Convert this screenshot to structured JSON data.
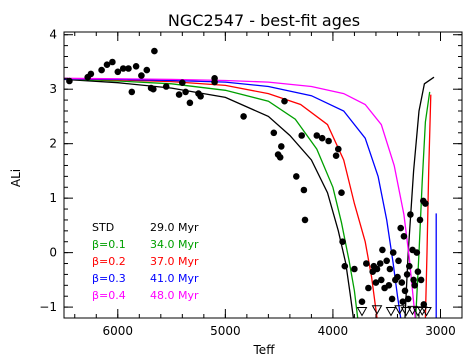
{
  "chart_data": {
    "type": "line",
    "title": "NGC2547 - best-fit ages",
    "xlabel": "Teff",
    "ylabel": "ALi",
    "xlim": [
      6500,
      2800
    ],
    "ylim": [
      -1.2,
      4.05
    ],
    "x_ticks": [
      6000,
      5000,
      4000,
      3000
    ],
    "x_tick_labels": [
      "6000",
      "5000",
      "4000",
      "3000"
    ],
    "y_ticks": [
      -1,
      0,
      1,
      2,
      3,
      4
    ],
    "y_tick_labels": [
      "−1",
      "0",
      "1",
      "2",
      "3",
      "4"
    ],
    "x_minor_step": 200,
    "y_minor_step": 0.2,
    "series": [
      {
        "color": "#000000",
        "points": [
          [
            6500,
            3.18
          ],
          [
            6000,
            3.12
          ],
          [
            5500,
            3.02
          ],
          [
            5000,
            2.85
          ],
          [
            4600,
            2.5
          ],
          [
            4400,
            2.15
          ],
          [
            4200,
            1.7
          ],
          [
            4050,
            1.1
          ],
          [
            3950,
            0.4
          ],
          [
            3880,
            -0.2
          ],
          [
            3840,
            -0.75
          ],
          [
            3810,
            -1.2
          ]
        ],
        "hook": [
          [
            3330,
            -1.2
          ],
          [
            3300,
            0.0
          ],
          [
            3250,
            1.5
          ],
          [
            3200,
            2.6
          ],
          [
            3150,
            3.1
          ],
          [
            3060,
            3.22
          ]
        ]
      },
      {
        "color": "#00a000",
        "points": [
          [
            6500,
            3.19
          ],
          [
            6000,
            3.15
          ],
          [
            5500,
            3.1
          ],
          [
            5000,
            2.98
          ],
          [
            4600,
            2.78
          ],
          [
            4350,
            2.45
          ],
          [
            4150,
            1.9
          ],
          [
            4000,
            1.2
          ],
          [
            3920,
            0.55
          ],
          [
            3850,
            -0.15
          ],
          [
            3800,
            -0.7
          ],
          [
            3770,
            -1.2
          ]
        ],
        "hook": [
          [
            3230,
            -1.2
          ],
          [
            3200,
            0.0
          ],
          [
            3170,
            1.3
          ],
          [
            3140,
            2.4
          ],
          [
            3100,
            2.95
          ]
        ]
      },
      {
        "color": "#ff0000",
        "points": [
          [
            6500,
            3.19
          ],
          [
            6000,
            3.17
          ],
          [
            5500,
            3.14
          ],
          [
            5000,
            3.07
          ],
          [
            4600,
            2.92
          ],
          [
            4300,
            2.72
          ],
          [
            4050,
            2.35
          ],
          [
            3900,
            1.7
          ],
          [
            3800,
            0.9
          ],
          [
            3700,
            0.2
          ],
          [
            3640,
            -0.45
          ],
          [
            3590,
            -1.2
          ]
        ],
        "hook": [
          [
            3140,
            -1.2
          ],
          [
            3125,
            0.0
          ],
          [
            3110,
            1.5
          ],
          [
            3090,
            2.9
          ]
        ]
      },
      {
        "color": "#0000ff",
        "points": [
          [
            6500,
            3.19
          ],
          [
            6000,
            3.18
          ],
          [
            5500,
            3.16
          ],
          [
            5000,
            3.13
          ],
          [
            4600,
            3.05
          ],
          [
            4200,
            2.88
          ],
          [
            3900,
            2.6
          ],
          [
            3700,
            2.1
          ],
          [
            3580,
            1.4
          ],
          [
            3500,
            0.6
          ],
          [
            3440,
            -0.2
          ],
          [
            3400,
            -0.8
          ],
          [
            3370,
            -1.2
          ]
        ],
        "hook": [
          [
            3040,
            -1.2
          ],
          [
            3040,
            0.72
          ]
        ]
      },
      {
        "color": "#ff00ff",
        "points": [
          [
            6500,
            3.2
          ],
          [
            6000,
            3.19
          ],
          [
            5500,
            3.18
          ],
          [
            5000,
            3.16
          ],
          [
            4600,
            3.13
          ],
          [
            4200,
            3.05
          ],
          [
            3900,
            2.92
          ],
          [
            3700,
            2.72
          ],
          [
            3550,
            2.35
          ],
          [
            3430,
            1.6
          ],
          [
            3340,
            0.7
          ],
          [
            3290,
            -0.1
          ],
          [
            3250,
            -0.9
          ],
          [
            3235,
            -1.2
          ]
        ],
        "hook": []
      }
    ],
    "stars": [
      [
        6450,
        3.15
      ],
      [
        6280,
        3.22
      ],
      [
        6250,
        3.28
      ],
      [
        6150,
        3.35
      ],
      [
        6100,
        3.45
      ],
      [
        6050,
        3.5
      ],
      [
        6000,
        3.32
      ],
      [
        5950,
        3.38
      ],
      [
        5900,
        3.38
      ],
      [
        5870,
        2.95
      ],
      [
        5830,
        3.42
      ],
      [
        5780,
        3.25
      ],
      [
        5730,
        3.35
      ],
      [
        5690,
        3.02
      ],
      [
        5670,
        3.0
      ],
      [
        5660,
        3.7
      ],
      [
        5550,
        3.05
      ],
      [
        5430,
        2.9
      ],
      [
        5400,
        3.12
      ],
      [
        5370,
        2.95
      ],
      [
        5330,
        2.75
      ],
      [
        5250,
        2.92
      ],
      [
        5230,
        2.87
      ],
      [
        5100,
        3.13
      ],
      [
        5100,
        3.2
      ],
      [
        4830,
        2.5
      ],
      [
        4550,
        2.2
      ],
      [
        4510,
        1.8
      ],
      [
        4490,
        1.75
      ],
      [
        4480,
        1.95
      ],
      [
        4450,
        2.78
      ],
      [
        4340,
        1.4
      ],
      [
        4290,
        2.15
      ],
      [
        4270,
        1.15
      ],
      [
        4260,
        0.6
      ],
      [
        4150,
        2.15
      ],
      [
        4100,
        2.1
      ],
      [
        4040,
        2.05
      ],
      [
        3970,
        1.78
      ],
      [
        3950,
        1.9
      ],
      [
        3920,
        1.1
      ],
      [
        3910,
        0.2
      ],
      [
        3890,
        -0.25
      ],
      [
        3800,
        -0.3
      ],
      [
        3730,
        -0.9
      ],
      [
        3690,
        -0.2
      ],
      [
        3670,
        -0.65
      ],
      [
        3630,
        -0.35
      ],
      [
        3620,
        -0.25
      ],
      [
        3600,
        -0.55
      ],
      [
        3590,
        -0.3
      ],
      [
        3560,
        -0.2
      ],
      [
        3550,
        -0.5
      ],
      [
        3540,
        0.05
      ],
      [
        3520,
        -0.65
      ],
      [
        3500,
        -0.15
      ],
      [
        3480,
        -0.6
      ],
      [
        3470,
        -0.3
      ],
      [
        3450,
        -0.85
      ],
      [
        3440,
        0.0
      ],
      [
        3420,
        -0.5
      ],
      [
        3400,
        -0.45
      ],
      [
        3390,
        -0.15
      ],
      [
        3370,
        0.45
      ],
      [
        3360,
        -0.55
      ],
      [
        3350,
        -0.9
      ],
      [
        3340,
        0.3
      ],
      [
        3330,
        -0.7
      ],
      [
        3310,
        -0.4
      ],
      [
        3300,
        -0.85
      ],
      [
        3290,
        -0.25
      ],
      [
        3280,
        0.7
      ],
      [
        3260,
        0.05
      ],
      [
        3250,
        -0.5
      ],
      [
        3240,
        -0.6
      ],
      [
        3220,
        0.0
      ],
      [
        3210,
        -0.35
      ],
      [
        3190,
        0.6
      ],
      [
        3180,
        -0.5
      ],
      [
        3160,
        0.95
      ],
      [
        3155,
        -0.95
      ],
      [
        3140,
        0.9
      ]
    ],
    "upper_limits": [
      [
        3730,
        -1.08
      ],
      [
        3590,
        -1.05
      ],
      [
        3460,
        -1.08
      ],
      [
        3380,
        -1.05
      ],
      [
        3320,
        -1.08
      ],
      [
        3260,
        -1.06
      ],
      [
        3210,
        -1.08
      ],
      [
        3170,
        -1.07
      ],
      [
        3130,
        -1.08
      ]
    ],
    "legend": [
      {
        "label": "STD",
        "age": "29.0 Myr",
        "color": "#000000"
      },
      {
        "label": "β=0.1",
        "age": "34.0 Myr",
        "color": "#00a000"
      },
      {
        "label": "β=0.2",
        "age": "37.0 Myr",
        "color": "#ff0000"
      },
      {
        "label": "β=0.3",
        "age": "41.0 Myr",
        "color": "#0000ff"
      },
      {
        "label": "β=0.4",
        "age": "48.0 Myr",
        "color": "#ff00ff"
      }
    ]
  }
}
